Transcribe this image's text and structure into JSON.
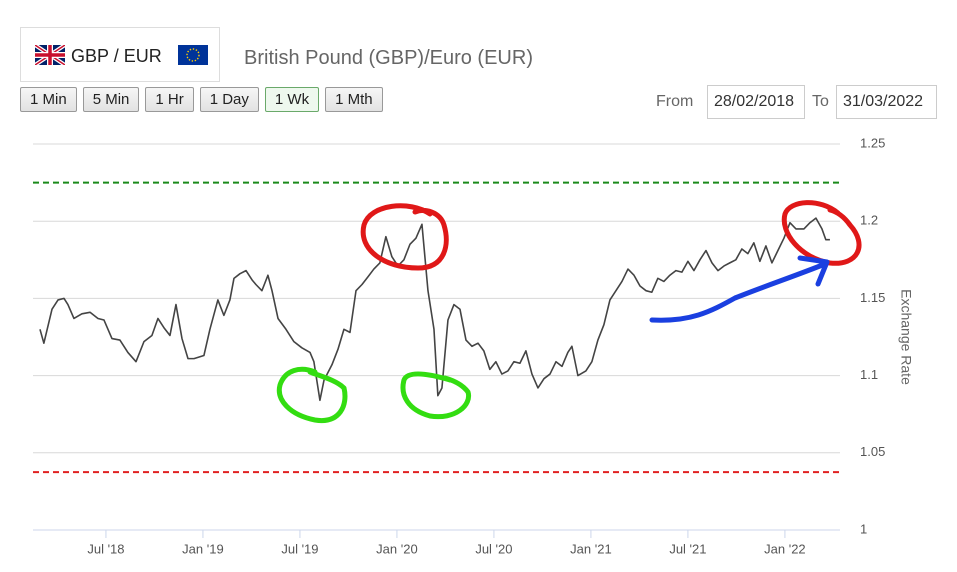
{
  "header": {
    "pair": "GBP / EUR",
    "title": "British Pound (GBP)/Euro (EUR)"
  },
  "controls": {
    "intervals": [
      "1 Min",
      "5 Min",
      "1 Hr",
      "1 Day",
      "1 Wk",
      "1 Mth"
    ],
    "active_interval": 4,
    "from_label": "From",
    "from": "28/02/2018",
    "to_label": "To",
    "to": "31/03/2022"
  },
  "chart_data": {
    "type": "line",
    "y_label": "Exchange Rate",
    "x": [
      2018.16,
      2018.18,
      2018.222,
      2018.253,
      2018.284,
      2018.304,
      2018.335,
      2018.376,
      2018.418,
      2018.459,
      2018.49,
      2018.531,
      2018.572,
      2018.613,
      2018.655,
      2018.696,
      2018.737,
      2018.768,
      2018.799,
      2018.83,
      2018.861,
      2018.892,
      2018.923,
      2018.954,
      2019.005,
      2019.036,
      2019.077,
      2019.108,
      2019.139,
      2019.16,
      2019.191,
      2019.222,
      2019.253,
      2019.273,
      2019.304,
      2019.335,
      2019.356,
      2019.387,
      2019.428,
      2019.469,
      2019.51,
      2019.552,
      2019.572,
      2019.603,
      2019.624,
      2019.665,
      2019.696,
      2019.727,
      2019.758,
      2019.789,
      2019.82,
      2019.851,
      2019.881,
      2019.912,
      2019.943,
      2019.974,
      2020.005,
      2020.036,
      2020.067,
      2020.098,
      2020.129,
      2020.16,
      2020.191,
      2020.211,
      2020.232,
      2020.263,
      2020.294,
      2020.325,
      2020.356,
      2020.387,
      2020.418,
      2020.448,
      2020.479,
      2020.51,
      2020.541,
      2020.572,
      2020.603,
      2020.634,
      2020.665,
      2020.696,
      2020.727,
      2020.758,
      2020.789,
      2020.82,
      2020.851,
      2020.881,
      2020.902,
      2020.933,
      2020.974,
      2021.005,
      2021.036,
      2021.067,
      2021.098,
      2021.129,
      2021.16,
      2021.191,
      2021.222,
      2021.253,
      2021.284,
      2021.314,
      2021.345,
      2021.376,
      2021.407,
      2021.438,
      2021.469,
      2021.5,
      2021.531,
      2021.562,
      2021.593,
      2021.624,
      2021.655,
      2021.686,
      2021.716,
      2021.747,
      2021.778,
      2021.809,
      2021.84,
      2021.871,
      2021.902,
      2021.933,
      2021.964,
      2021.995,
      2022.026,
      2022.057,
      2022.098,
      2022.129,
      2022.16,
      2022.191,
      2022.211,
      2022.232
    ],
    "series": [
      {
        "name": "GBP/EUR",
        "color": "#444444",
        "values": [
          1.13,
          1.121,
          1.143,
          1.149,
          1.15,
          1.146,
          1.137,
          1.14,
          1.141,
          1.137,
          1.136,
          1.124,
          1.123,
          1.115,
          1.109,
          1.122,
          1.126,
          1.137,
          1.131,
          1.126,
          1.146,
          1.124,
          1.111,
          1.111,
          1.113,
          1.13,
          1.149,
          1.139,
          1.149,
          1.163,
          1.166,
          1.168,
          1.162,
          1.159,
          1.155,
          1.165,
          1.155,
          1.137,
          1.13,
          1.122,
          1.118,
          1.115,
          1.109,
          1.084,
          1.097,
          1.107,
          1.117,
          1.13,
          1.128,
          1.155,
          1.159,
          1.164,
          1.169,
          1.173,
          1.19,
          1.177,
          1.171,
          1.175,
          1.185,
          1.189,
          1.198,
          1.155,
          1.13,
          1.087,
          1.092,
          1.136,
          1.146,
          1.143,
          1.123,
          1.119,
          1.121,
          1.116,
          1.104,
          1.109,
          1.101,
          1.103,
          1.109,
          1.108,
          1.116,
          1.101,
          1.092,
          1.098,
          1.101,
          1.109,
          1.106,
          1.115,
          1.119,
          1.1,
          1.103,
          1.109,
          1.123,
          1.133,
          1.149,
          1.155,
          1.161,
          1.169,
          1.165,
          1.158,
          1.155,
          1.154,
          1.163,
          1.161,
          1.165,
          1.168,
          1.167,
          1.174,
          1.168,
          1.175,
          1.181,
          1.173,
          1.168,
          1.171,
          1.173,
          1.175,
          1.182,
          1.179,
          1.186,
          1.174,
          1.184,
          1.173,
          1.181,
          1.189,
          1.199,
          1.195,
          1.195,
          1.199,
          1.202,
          1.195,
          1.188,
          1.188
        ]
      }
    ],
    "reference_lines": [
      {
        "value": 1.225,
        "color": "#1a8a1a"
      },
      {
        "value": 1.0375,
        "color": "#e02020"
      }
    ],
    "xlim": [
      2018.124,
      2022.284
    ],
    "xticks": [
      {
        "value": 2018.5,
        "label": "Jul '18"
      },
      {
        "value": 2019,
        "label": "Jan '19"
      },
      {
        "value": 2019.5,
        "label": "Jul '19"
      },
      {
        "value": 2020,
        "label": "Jan '20"
      },
      {
        "value": 2020.5,
        "label": "Jul '20"
      },
      {
        "value": 2021,
        "label": "Jan '21"
      },
      {
        "value": 2021.5,
        "label": "Jul '21"
      },
      {
        "value": 2022,
        "label": "Jan '22"
      }
    ],
    "ylim": [
      1,
      1.25
    ],
    "yticks": [
      1,
      1.05,
      1.1,
      1.15,
      1.2,
      1.25
    ],
    "grid": true
  }
}
